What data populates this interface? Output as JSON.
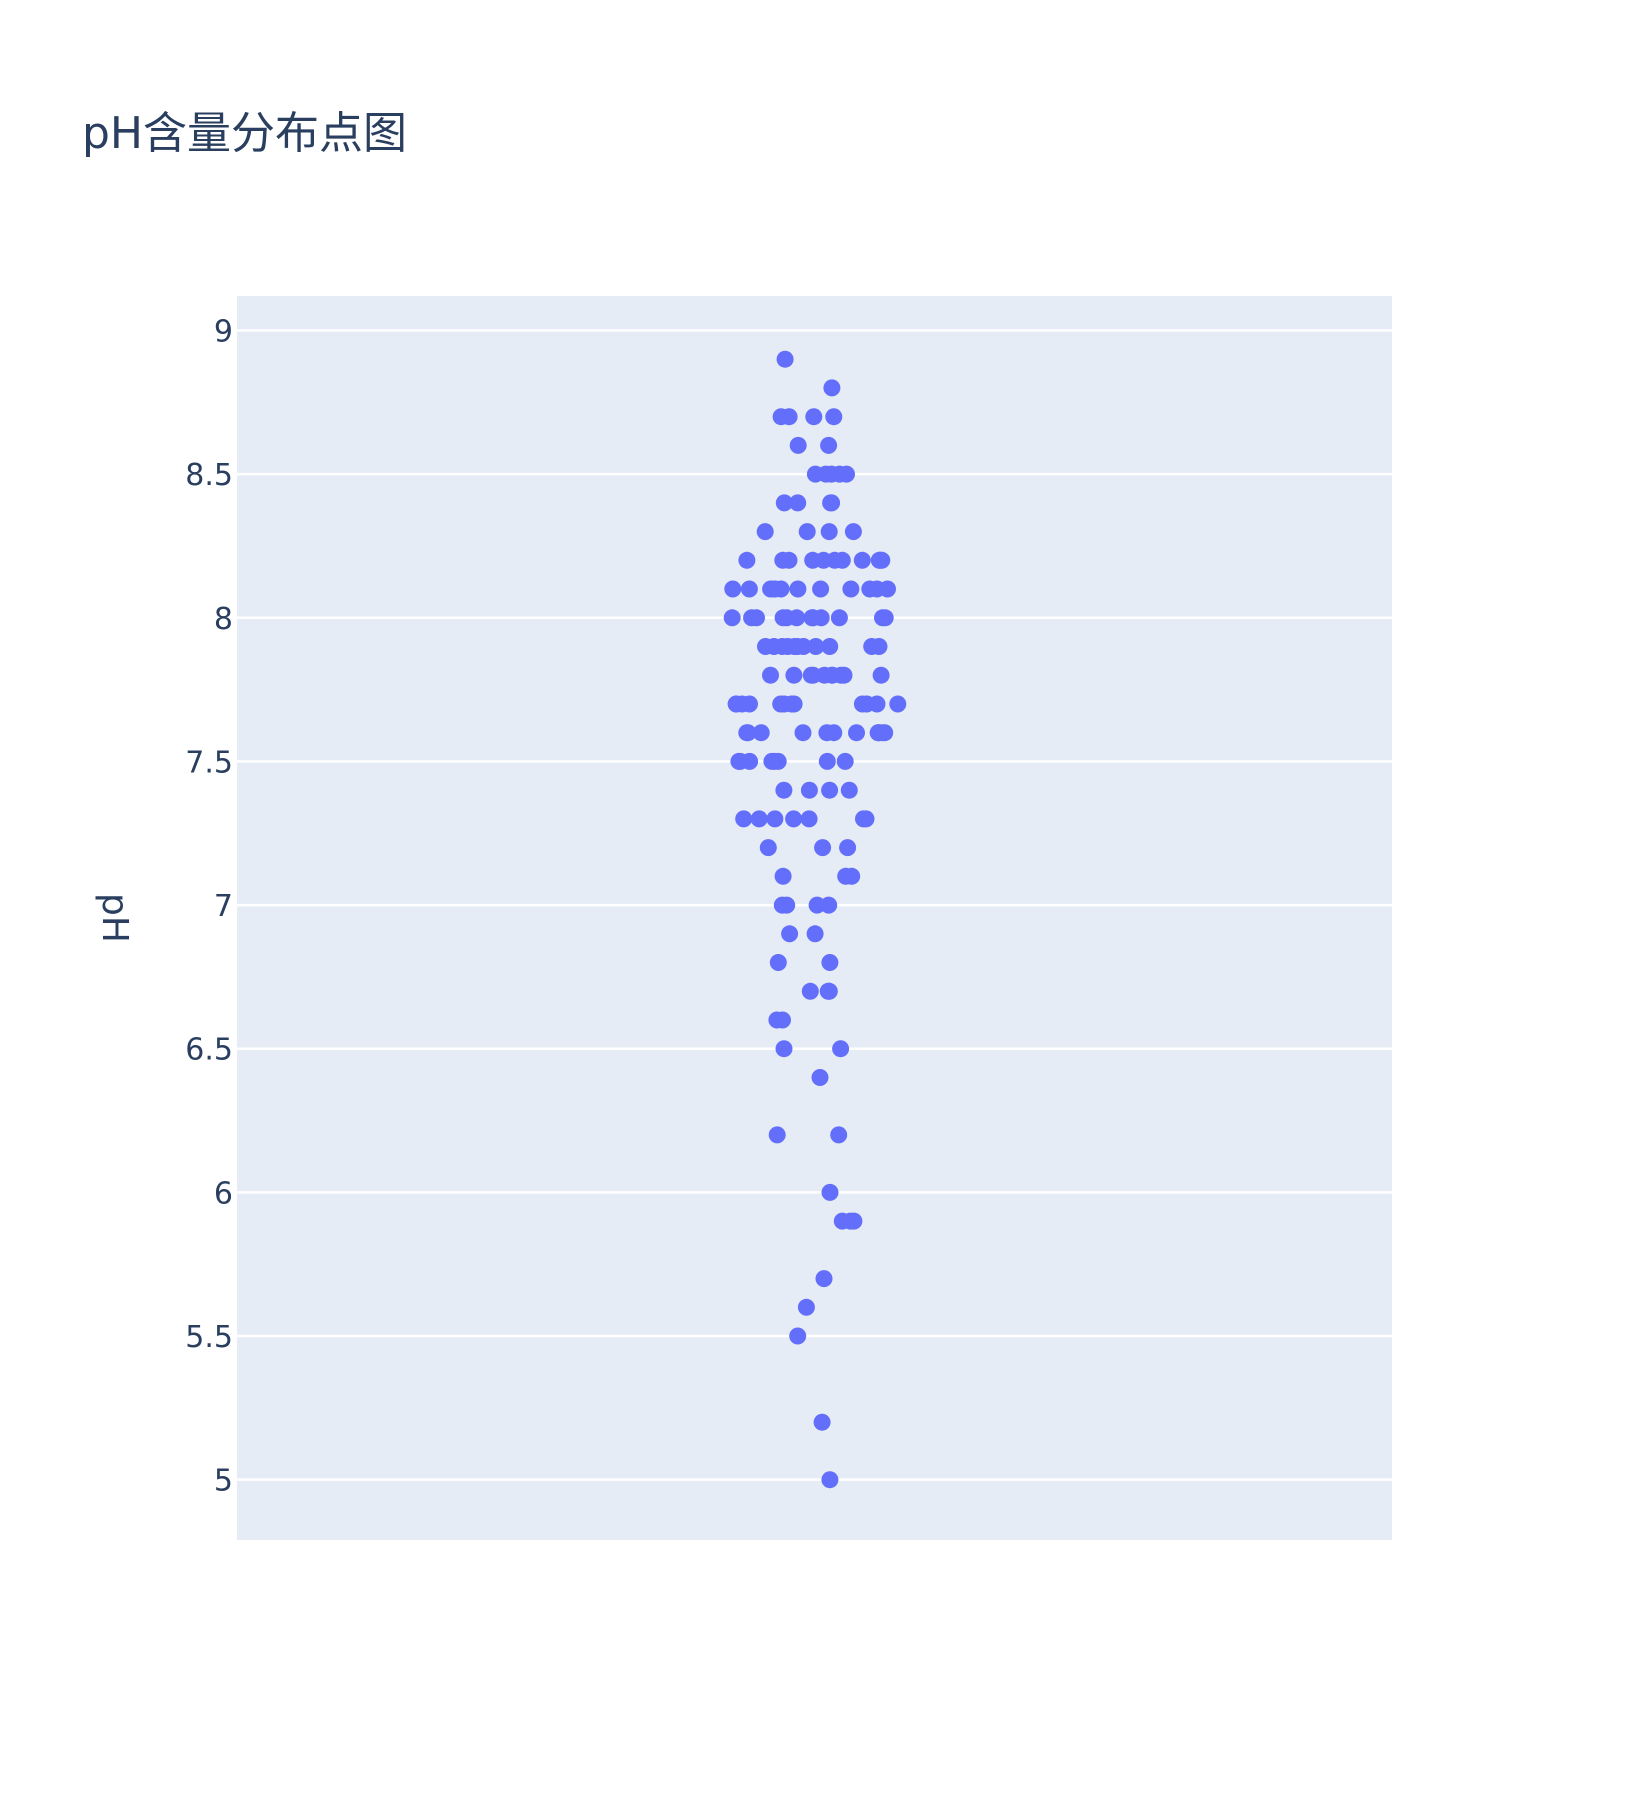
{
  "chart_data": {
    "type": "scatter",
    "title": "pH含量分布点图",
    "ylabel": "pH",
    "xlabel": "",
    "ylim": [
      4.79,
      9.12
    ],
    "yticks": [
      5,
      5.5,
      6,
      6.5,
      7,
      7.5,
      8,
      8.5,
      9
    ],
    "yticklabels": [
      "5",
      "5.5",
      "6",
      "6.5",
      "7",
      "7.5",
      "8",
      "8.5",
      "9"
    ],
    "grid": true,
    "marker_color": "#636efa",
    "plot_bg": "#e5ecf6",
    "series": [
      {
        "values": [
          8.9,
          8.8,
          8.7,
          8.7,
          8.7,
          8.7,
          8.6,
          8.6,
          8.5,
          8.5,
          8.5,
          8.5,
          8.5,
          8.4,
          8.4,
          8.4,
          8.4,
          8.3,
          8.3,
          8.3,
          8.3,
          8.2,
          8.2,
          8.2,
          8.2,
          8.2,
          8.2,
          8.2,
          8.2,
          8.2,
          8.2,
          8.2,
          8.1,
          8.1,
          8.1,
          8.1,
          8.1,
          8.1,
          8.1,
          8.1,
          8.1,
          8.1,
          8.1,
          8.1,
          8.0,
          8.0,
          8.0,
          8.0,
          8.0,
          8.0,
          8.0,
          8.0,
          8.0,
          8.0,
          8.0,
          8.0,
          7.9,
          7.9,
          7.9,
          7.9,
          7.9,
          7.9,
          7.9,
          7.9,
          7.9,
          7.9,
          7.9,
          7.8,
          7.8,
          7.8,
          7.8,
          7.8,
          7.8,
          7.8,
          7.8,
          7.8,
          7.8,
          7.7,
          7.7,
          7.7,
          7.7,
          7.7,
          7.7,
          7.7,
          7.7,
          7.7,
          7.7,
          7.7,
          7.7,
          7.6,
          7.6,
          7.6,
          7.6,
          7.6,
          7.6,
          7.6,
          7.6,
          7.6,
          7.6,
          7.6,
          7.6,
          7.5,
          7.5,
          7.5,
          7.5,
          7.5,
          7.5,
          7.5,
          7.5,
          7.4,
          7.4,
          7.4,
          7.4,
          7.3,
          7.3,
          7.3,
          7.3,
          7.3,
          7.3,
          7.3,
          7.2,
          7.2,
          7.2,
          7.1,
          7.1,
          7.1,
          7.0,
          7.0,
          7.0,
          7.0,
          6.9,
          6.9,
          6.8,
          6.8,
          6.7,
          6.7,
          6.7,
          6.6,
          6.6,
          6.5,
          6.5,
          6.4,
          6.2,
          6.2,
          6.0,
          5.9,
          5.9,
          5.9,
          5.7,
          5.6,
          5.5,
          5.2,
          5.0
        ]
      }
    ]
  }
}
